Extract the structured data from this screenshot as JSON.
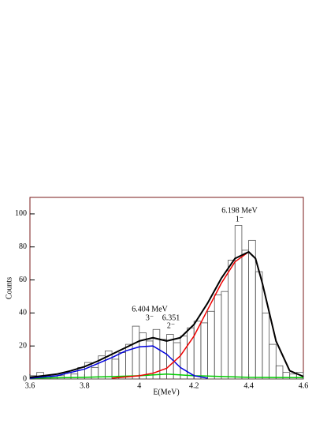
{
  "chart_data": {
    "type": "histogram",
    "xlabel": "E(MeV)",
    "ylabel": "Counts",
    "bins": [
      3.6,
      3.625,
      3.65,
      3.675,
      3.7,
      3.725,
      3.75,
      3.775,
      3.8,
      3.825,
      3.85,
      3.875,
      3.9,
      3.925,
      3.95,
      3.975,
      4.0,
      4.025,
      4.05,
      4.075,
      4.1,
      4.125,
      4.15,
      4.175,
      4.2,
      4.225,
      4.25,
      4.275,
      4.3,
      4.325,
      4.35,
      4.375,
      4.4,
      4.425,
      4.45,
      4.475,
      4.5,
      4.525,
      4.55,
      4.575,
      4.6
    ],
    "counts": [
      2,
      4,
      2,
      1,
      2,
      4,
      3,
      7,
      10,
      7,
      14,
      17,
      12,
      16,
      21,
      32,
      28,
      23,
      30,
      24,
      27,
      22,
      26,
      31,
      35,
      34,
      41,
      51,
      53,
      72,
      93,
      78,
      84,
      65,
      40,
      21,
      8,
      4,
      3,
      4
    ],
    "color": "#555555",
    "fits": [
      {
        "color": "#00cc00",
        "x": [
          3.6,
          3.8,
          4.0,
          4.1,
          4.2,
          4.4,
          4.6
        ],
        "values": [
          0.5,
          1,
          2,
          3,
          2,
          1,
          0.8
        ]
      },
      {
        "color": "#0000dd",
        "x": [
          3.6,
          3.7,
          3.8,
          3.85,
          3.9,
          3.95,
          4.0,
          4.05,
          4.1,
          4.15,
          4.2,
          4.25
        ],
        "values": [
          0.5,
          2,
          6,
          9.5,
          13,
          17,
          19.5,
          20,
          15,
          7,
          2,
          0.5
        ]
      },
      {
        "color": "#ee0000",
        "x": [
          3.9,
          4.0,
          4.05,
          4.1,
          4.15,
          4.2,
          4.25,
          4.3,
          4.35,
          4.4,
          4.425,
          4.45,
          4.5,
          4.55,
          4.6
        ],
        "values": [
          0.5,
          2,
          3.5,
          6.5,
          14,
          26,
          42,
          58,
          71,
          77,
          73,
          58,
          23,
          5,
          1.5
        ]
      },
      {
        "color": "#000000",
        "x": [
          3.6,
          3.65,
          3.7,
          3.75,
          3.8,
          3.85,
          3.9,
          3.95,
          4.0,
          4.05,
          4.1,
          4.15,
          4.2,
          4.25,
          4.3,
          4.35,
          4.4,
          4.425,
          4.45,
          4.5,
          4.55,
          4.6
        ],
        "values": [
          1,
          2,
          3,
          5,
          7.5,
          11,
          15,
          19,
          23,
          25,
          23,
          25,
          33,
          46,
          61,
          73,
          77,
          73,
          58,
          23,
          5,
          1.5
        ]
      }
    ],
    "annotations": [
      "6.198 MeV",
      "1⁻",
      "6.404 MeV",
      "3⁻",
      "6.351",
      "2⁻"
    ],
    "xlim": [
      3.6,
      4.6
    ],
    "ylim": [
      0,
      110
    ],
    "xticks": [
      3.6,
      3.8,
      4,
      4.2,
      4.4,
      4.6
    ],
    "yticks": [
      0,
      20,
      40,
      60,
      80,
      100
    ]
  }
}
